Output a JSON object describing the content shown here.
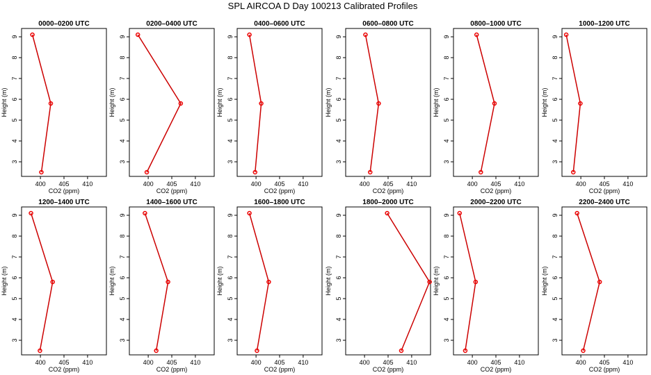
{
  "figure": {
    "title": "SPL AIRCOA D  Day 100213  Calibrated Profiles"
  },
  "style": {
    "line_color": "#cc0000",
    "point_color": "#ee0000",
    "frame_color": "#000000"
  },
  "chart_data": [
    {
      "type": "line",
      "title": "0000–0200 UTC",
      "xlabel": "CO2 (ppm)",
      "ylabel": "Height (m)",
      "xlim": [
        396,
        414
      ],
      "ylim": [
        2.3,
        9.4
      ],
      "xticks": [
        400,
        405,
        410
      ],
      "yticks": [
        3,
        4,
        5,
        6,
        7,
        8,
        9
      ],
      "grid": false,
      "series": [
        {
          "x": [
            398.3,
            402.2,
            400.2
          ],
          "y": [
            9.1,
            5.8,
            2.5
          ]
        }
      ]
    },
    {
      "type": "line",
      "title": "0200–0400 UTC",
      "xlabel": "CO2 (ppm)",
      "ylabel": "Height (m)",
      "xlim": [
        396,
        414
      ],
      "ylim": [
        2.3,
        9.4
      ],
      "xticks": [
        400,
        405,
        410
      ],
      "yticks": [
        3,
        4,
        5,
        6,
        7,
        8,
        9
      ],
      "grid": false,
      "series": [
        {
          "x": [
            397.8,
            406.9,
            399.7
          ],
          "y": [
            9.1,
            5.8,
            2.5
          ]
        }
      ]
    },
    {
      "type": "line",
      "title": "0400–0600 UTC",
      "xlabel": "CO2 (ppm)",
      "ylabel": "Height (m)",
      "xlim": [
        396,
        414
      ],
      "ylim": [
        2.3,
        9.4
      ],
      "xticks": [
        400,
        405,
        410
      ],
      "yticks": [
        3,
        4,
        5,
        6,
        7,
        8,
        9
      ],
      "grid": false,
      "series": [
        {
          "x": [
            398.6,
            401.1,
            399.8
          ],
          "y": [
            9.1,
            5.8,
            2.5
          ]
        }
      ]
    },
    {
      "type": "line",
      "title": "0600–0800 UTC",
      "xlabel": "CO2 (ppm)",
      "ylabel": "Height (m)",
      "xlim": [
        396,
        414
      ],
      "ylim": [
        2.3,
        9.4
      ],
      "xticks": [
        400,
        405,
        410
      ],
      "yticks": [
        3,
        4,
        5,
        6,
        7,
        8,
        9
      ],
      "grid": false,
      "series": [
        {
          "x": [
            400.2,
            403.0,
            401.2
          ],
          "y": [
            9.1,
            5.8,
            2.5
          ]
        }
      ]
    },
    {
      "type": "line",
      "title": "0800–1000 UTC",
      "xlabel": "CO2 (ppm)",
      "ylabel": "Height (m)",
      "xlim": [
        396,
        414
      ],
      "ylim": [
        2.3,
        9.4
      ],
      "xticks": [
        400,
        405,
        410
      ],
      "yticks": [
        3,
        4,
        5,
        6,
        7,
        8,
        9
      ],
      "grid": false,
      "series": [
        {
          "x": [
            400.9,
            404.7,
            401.8
          ],
          "y": [
            9.1,
            5.8,
            2.5
          ]
        }
      ]
    },
    {
      "type": "line",
      "title": "1000–1200 UTC",
      "xlabel": "CO2 (ppm)",
      "ylabel": "Height (m)",
      "xlim": [
        396,
        414
      ],
      "ylim": [
        2.3,
        9.4
      ],
      "xticks": [
        400,
        405,
        410
      ],
      "yticks": [
        3,
        4,
        5,
        6,
        7,
        8,
        9
      ],
      "grid": false,
      "series": [
        {
          "x": [
            396.9,
            399.9,
            398.4
          ],
          "y": [
            9.1,
            5.8,
            2.5
          ]
        }
      ]
    },
    {
      "type": "line",
      "title": "1200–1400 UTC",
      "xlabel": "CO2 (ppm)",
      "ylabel": "Height (m)",
      "xlim": [
        396,
        414
      ],
      "ylim": [
        2.3,
        9.4
      ],
      "xticks": [
        400,
        405,
        410
      ],
      "yticks": [
        3,
        4,
        5,
        6,
        7,
        8,
        9
      ],
      "grid": false,
      "series": [
        {
          "x": [
            398.0,
            402.6,
            399.9
          ],
          "y": [
            9.1,
            5.8,
            2.5
          ]
        }
      ]
    },
    {
      "type": "line",
      "title": "1400–1600 UTC",
      "xlabel": "CO2 (ppm)",
      "ylabel": "Height (m)",
      "xlim": [
        396,
        414
      ],
      "ylim": [
        2.3,
        9.4
      ],
      "xticks": [
        400,
        405,
        410
      ],
      "yticks": [
        3,
        4,
        5,
        6,
        7,
        8,
        9
      ],
      "grid": false,
      "series": [
        {
          "x": [
            399.3,
            404.2,
            401.7
          ],
          "y": [
            9.1,
            5.8,
            2.5
          ]
        }
      ]
    },
    {
      "type": "line",
      "title": "1600–1800 UTC",
      "xlabel": "CO2 (ppm)",
      "ylabel": "Height (m)",
      "xlim": [
        396,
        414
      ],
      "ylim": [
        2.3,
        9.4
      ],
      "xticks": [
        400,
        405,
        410
      ],
      "yticks": [
        3,
        4,
        5,
        6,
        7,
        8,
        9
      ],
      "grid": false,
      "series": [
        {
          "x": [
            398.6,
            402.7,
            400.2
          ],
          "y": [
            9.1,
            5.8,
            2.5
          ]
        }
      ]
    },
    {
      "type": "line",
      "title": "1800–2000 UTC",
      "xlabel": "CO2 (ppm)",
      "ylabel": "Height (m)",
      "xlim": [
        396,
        414
      ],
      "ylim": [
        2.3,
        9.4
      ],
      "xticks": [
        400,
        405,
        410
      ],
      "yticks": [
        3,
        4,
        5,
        6,
        7,
        8,
        9
      ],
      "grid": false,
      "series": [
        {
          "x": [
            404.8,
            413.8,
            407.8
          ],
          "y": [
            9.1,
            5.8,
            2.5
          ]
        }
      ]
    },
    {
      "type": "line",
      "title": "2000–2200 UTC",
      "xlabel": "CO2 (ppm)",
      "ylabel": "Height (m)",
      "xlim": [
        396,
        414
      ],
      "ylim": [
        2.3,
        9.4
      ],
      "xticks": [
        400,
        405,
        410
      ],
      "yticks": [
        3,
        4,
        5,
        6,
        7,
        8,
        9
      ],
      "grid": false,
      "series": [
        {
          "x": [
            397.3,
            400.7,
            398.5
          ],
          "y": [
            9.1,
            5.8,
            2.5
          ]
        }
      ]
    },
    {
      "type": "line",
      "title": "2200–2400 UTC",
      "xlabel": "CO2 (ppm)",
      "ylabel": "Height (m)",
      "xlim": [
        396,
        414
      ],
      "ylim": [
        2.3,
        9.4
      ],
      "xticks": [
        400,
        405,
        410
      ],
      "yticks": [
        3,
        4,
        5,
        6,
        7,
        8,
        9
      ],
      "grid": false,
      "series": [
        {
          "x": [
            399.2,
            404.0,
            400.5
          ],
          "y": [
            9.1,
            5.8,
            2.5
          ]
        }
      ]
    }
  ]
}
